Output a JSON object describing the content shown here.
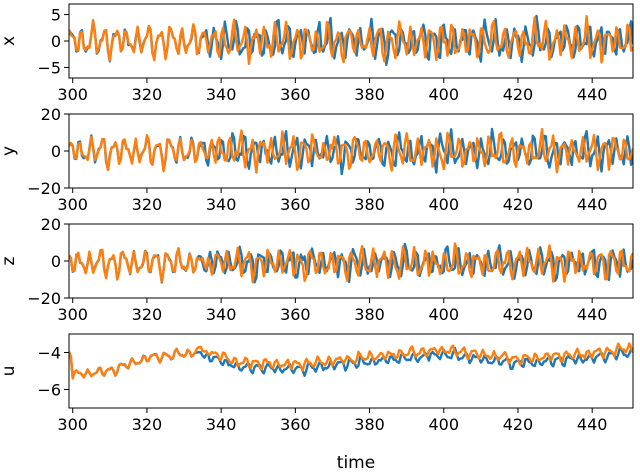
{
  "figure": {
    "xlabel": "time"
  },
  "colors": {
    "series_a": "#1f77b4",
    "series_b": "#ff7f0e"
  },
  "chart_data": [
    {
      "type": "line",
      "ylabel": "x",
      "xlim": [
        299,
        451
      ],
      "ylim": [
        -7,
        7
      ],
      "xticks": [
        300,
        320,
        340,
        360,
        380,
        400,
        420,
        440
      ],
      "yticks": [
        -5,
        0,
        5
      ],
      "diverge_at": 333,
      "series": [
        {
          "color": "#1f77b4",
          "amp": 4.2,
          "offset": 0,
          "seed": 1.3
        },
        {
          "color": "#ff7f0e",
          "amp": 4.2,
          "offset": 0,
          "seed": 2.7
        }
      ]
    },
    {
      "type": "line",
      "ylabel": "y",
      "xlim": [
        299,
        451
      ],
      "ylim": [
        -20,
        20
      ],
      "xticks": [
        300,
        320,
        340,
        360,
        380,
        400,
        420,
        440
      ],
      "yticks": [
        -20,
        0,
        20
      ],
      "diverge_at": 333,
      "series": [
        {
          "color": "#1f77b4",
          "amp": 11,
          "offset": 0,
          "seed": 3.1
        },
        {
          "color": "#ff7f0e",
          "amp": 11,
          "offset": 0,
          "seed": 4.9
        }
      ]
    },
    {
      "type": "line",
      "ylabel": "z",
      "xlim": [
        299,
        451
      ],
      "ylim": [
        -20,
        20
      ],
      "xticks": [
        300,
        320,
        340,
        360,
        380,
        400,
        420,
        440
      ],
      "yticks": [
        -20,
        0,
        20
      ],
      "diverge_at": 333,
      "series": [
        {
          "color": "#1f77b4",
          "amp": 10,
          "offset": -1,
          "seed": 5.5
        },
        {
          "color": "#ff7f0e",
          "amp": 10,
          "offset": -1,
          "seed": 6.8
        }
      ]
    },
    {
      "type": "line",
      "ylabel": "u",
      "xlim": [
        299,
        451
      ],
      "ylim": [
        -7,
        -3
      ],
      "xticks": [
        300,
        320,
        340,
        360,
        380,
        400,
        420,
        440
      ],
      "yticks": [
        -6,
        -4
      ],
      "diverge_at": 333,
      "trend": [
        [
          300,
          -5.2
        ],
        [
          310,
          -5.0
        ],
        [
          320,
          -4.3
        ],
        [
          333,
          -4.0
        ],
        [
          345,
          -4.8
        ],
        [
          360,
          -4.9
        ],
        [
          375,
          -4.6
        ],
        [
          390,
          -4.3
        ],
        [
          400,
          -4.1
        ],
        [
          420,
          -4.6
        ],
        [
          440,
          -4.3
        ],
        [
          450,
          -4.0
        ]
      ],
      "series": [
        {
          "color": "#1f77b4",
          "amp": 0.35,
          "offset": 0,
          "seed": 7.2
        },
        {
          "color": "#ff7f0e",
          "amp": 0.35,
          "offset": 0,
          "seed": 8.4
        }
      ]
    }
  ]
}
